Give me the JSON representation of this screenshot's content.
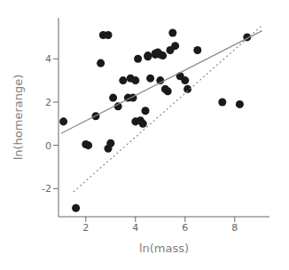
{
  "chart_data": {
    "type": "scatter",
    "xlabel": "ln(mass)",
    "ylabel": "ln(homerange)",
    "xlim": [
      0.9,
      9.4
    ],
    "ylim": [
      -3.3,
      5.9
    ],
    "xticks": [
      2,
      4,
      6,
      8
    ],
    "yticks": [
      -2,
      0,
      2,
      4
    ],
    "series": [
      {
        "type": "scatter",
        "marker": "circle",
        "color": "#1a1a1a",
        "x": [
          1.1,
          1.6,
          2.0,
          2.1,
          2.4,
          2.6,
          2.7,
          2.9,
          2.9,
          3.0,
          3.1,
          3.3,
          3.5,
          3.7,
          3.8,
          3.9,
          4.0,
          4.0,
          4.1,
          4.2,
          4.3,
          4.4,
          4.5,
          4.5,
          4.6,
          4.8,
          4.8,
          4.9,
          5.0,
          5.0,
          5.1,
          5.2,
          5.3,
          5.4,
          5.5,
          5.6,
          5.8,
          6.0,
          6.1,
          6.5,
          7.5,
          8.2,
          8.5
        ],
        "values": [
          1.1,
          -2.9,
          0.05,
          0.0,
          1.35,
          3.8,
          5.1,
          5.1,
          -0.15,
          0.1,
          2.2,
          1.8,
          3.0,
          2.2,
          3.1,
          2.2,
          1.1,
          3.0,
          4.0,
          1.15,
          1.0,
          1.6,
          4.1,
          4.15,
          3.1,
          4.2,
          4.25,
          4.3,
          4.2,
          3.0,
          4.15,
          2.6,
          2.5,
          4.4,
          5.2,
          4.6,
          3.2,
          3.0,
          2.6,
          4.4,
          2.0,
          1.9,
          5.0
        ]
      },
      {
        "type": "line",
        "line_style": "solid",
        "color": "#888888",
        "x": [
          1.0,
          9.1
        ],
        "values": [
          0.55,
          5.3
        ]
      },
      {
        "type": "line",
        "line_style": "dotted",
        "color": "#888888",
        "x": [
          1.5,
          9.1
        ],
        "values": [
          -2.15,
          5.55
        ]
      }
    ]
  }
}
